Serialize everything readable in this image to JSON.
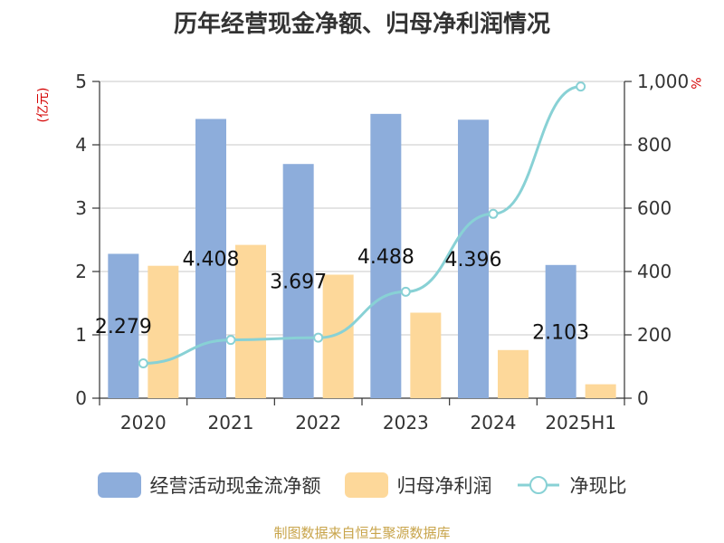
{
  "title": "历年经营现金净额、归母净利润情况",
  "source": "制图数据来自恒生聚源数据库",
  "chart_data": {
    "type": "bar",
    "categories": [
      "2020",
      "2021",
      "2022",
      "2023",
      "2024",
      "2025H1"
    ],
    "left_axis": {
      "unit": "(亿元)",
      "range": [
        0,
        5
      ],
      "ticks": [
        "0",
        "1",
        "2",
        "3",
        "4",
        "5"
      ]
    },
    "right_axis": {
      "unit": "%",
      "range": [
        0,
        1000
      ],
      "ticks": [
        "0",
        "200",
        "400",
        "600",
        "800",
        "1,000"
      ]
    },
    "grid": true,
    "legend_position": "bottom",
    "series": [
      {
        "name": "经营活动现金流净额",
        "kind": "bar",
        "axis": "left",
        "color": "#8daddb",
        "values": [
          2.279,
          4.408,
          3.697,
          4.488,
          4.396,
          2.103
        ],
        "labels": [
          "2.279",
          "4.408",
          "3.697",
          "4.488",
          "4.396",
          "2.103"
        ]
      },
      {
        "name": "归母净利润",
        "kind": "bar",
        "axis": "left",
        "color": "#fdd89a",
        "values": [
          2.09,
          2.42,
          1.95,
          1.35,
          0.76,
          0.22
        ]
      },
      {
        "name": "净现比",
        "kind": "line",
        "axis": "right",
        "color": "#88d1d5",
        "values": [
          110,
          184,
          191,
          336,
          582,
          984
        ]
      }
    ]
  }
}
